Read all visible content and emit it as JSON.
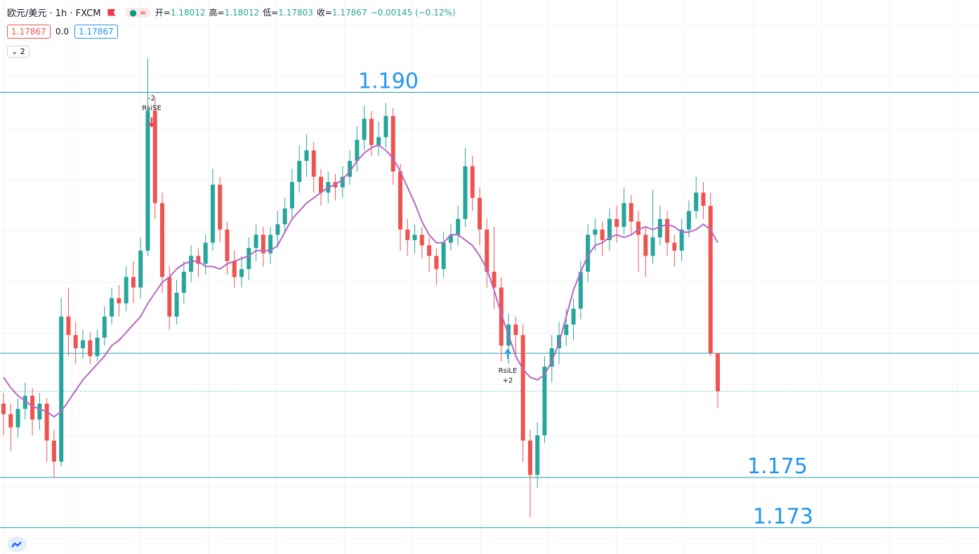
{
  "chart_data": {
    "type": "candlestick",
    "title": "欧元/美元 · 1h · FXCM",
    "indicator_icon": "≈",
    "legend": [
      {
        "label": "开=",
        "value": "1.18012"
      },
      {
        "label": "高=",
        "value": "1.18012"
      },
      {
        "label": "低=",
        "value": "1.17803"
      },
      {
        "label": "收=",
        "value": "1.17867"
      }
    ],
    "change": "−0.00145 (−0.12%)",
    "badges": [
      "1.17867",
      "0.0",
      "1.17867"
    ],
    "collapse_label": "2",
    "ylim": [
      1.1725,
      1.1935
    ],
    "up_color": "#26a69a",
    "down_color": "#ef5350",
    "ma_color": "#b865c6",
    "open": [
      1.1782,
      1.1778,
      1.1773,
      1.178,
      1.1785,
      1.1776,
      1.1782,
      1.1768,
      1.176,
      1.1815,
      1.1808,
      1.1803,
      1.1806,
      1.18,
      1.1807,
      1.1815,
      1.1822,
      1.182,
      1.183,
      1.1826,
      1.184,
      1.1893,
      1.1858,
      1.183,
      1.1815,
      1.1824,
      1.1832,
      1.1838,
      1.1835,
      1.1843,
      1.1865,
      1.1848,
      1.1836,
      1.183,
      1.1833,
      1.1841,
      1.1846,
      1.1839,
      1.1846,
      1.185,
      1.1856,
      1.1866,
      1.1874,
      1.1878,
      1.1868,
      1.1862,
      1.1866,
      1.1864,
      1.1868,
      1.1874,
      1.1882,
      1.189,
      1.188,
      1.1883,
      1.1891,
      1.187,
      1.1848,
      1.1844,
      1.1846,
      1.1842,
      1.1838,
      1.1833,
      1.1843,
      1.1846,
      1.1852,
      1.1872,
      1.186,
      1.1848,
      1.1832,
      1.1826,
      1.1804,
      1.1812,
      1.1808,
      1.1768,
      1.1755,
      1.177,
      1.1796,
      1.1803,
      1.1808,
      1.1812,
      1.1818,
      1.1832,
      1.1846,
      1.1848,
      1.1844,
      1.1852,
      1.1849,
      1.1858,
      1.1851,
      1.1846,
      1.1838,
      1.1845,
      1.1852,
      1.1843,
      1.184,
      1.1848,
      1.1855,
      1.1862,
      1.1857,
      1.18012
    ],
    "high": [
      1.1786,
      1.1782,
      1.1784,
      1.179,
      1.1788,
      1.1786,
      1.1784,
      1.1772,
      1.1822,
      1.1826,
      1.1813,
      1.181,
      1.1809,
      1.181,
      1.1819,
      1.1826,
      1.1827,
      1.1834,
      1.1836,
      1.1845,
      1.1913,
      1.1898,
      1.1862,
      1.1834,
      1.1829,
      1.1836,
      1.1842,
      1.1841,
      1.1846,
      1.1871,
      1.1868,
      1.1851,
      1.184,
      1.1838,
      1.1845,
      1.185,
      1.1849,
      1.1849,
      1.1855,
      1.186,
      1.1871,
      1.188,
      1.1884,
      1.1881,
      1.1871,
      1.187,
      1.1869,
      1.1872,
      1.1878,
      1.1887,
      1.1895,
      1.1893,
      1.1889,
      1.1896,
      1.1894,
      1.1873,
      1.1852,
      1.185,
      1.1849,
      1.1845,
      1.1841,
      1.1847,
      1.185,
      1.1857,
      1.1879,
      1.1876,
      1.1864,
      1.1852,
      1.1849,
      1.183,
      1.1816,
      1.1815,
      1.1812,
      1.1772,
      1.1775,
      1.18,
      1.1808,
      1.1813,
      1.1818,
      1.1822,
      1.1836,
      1.185,
      1.1852,
      1.1851,
      1.1856,
      1.1857,
      1.1864,
      1.1861,
      1.1855,
      1.1849,
      1.1863,
      1.1857,
      1.1855,
      1.1846,
      1.1852,
      1.1859,
      1.1868,
      1.1866,
      1.1862,
      1.18012
    ],
    "low": [
      1.177,
      1.1764,
      1.1769,
      1.1776,
      1.177,
      1.1772,
      1.176,
      1.1754,
      1.1758,
      1.18,
      1.1797,
      1.1799,
      1.1797,
      1.1798,
      1.1804,
      1.1812,
      1.1815,
      1.1817,
      1.182,
      1.1822,
      1.1838,
      1.1852,
      1.1824,
      1.181,
      1.1812,
      1.182,
      1.1828,
      1.183,
      1.1831,
      1.184,
      1.1843,
      1.1831,
      1.1826,
      1.1826,
      1.1829,
      1.1836,
      1.1834,
      1.1835,
      1.1841,
      1.1847,
      1.1852,
      1.1862,
      1.1868,
      1.1862,
      1.1857,
      1.1858,
      1.1859,
      1.186,
      1.1865,
      1.187,
      1.1878,
      1.1876,
      1.1876,
      1.1879,
      1.1865,
      1.184,
      1.1838,
      1.1839,
      1.1837,
      1.1832,
      1.1827,
      1.183,
      1.184,
      1.1842,
      1.1849,
      1.1855,
      1.1842,
      1.1826,
      1.1818,
      1.1798,
      1.1797,
      1.18,
      1.176,
      1.1739,
      1.175,
      1.1767,
      1.179,
      1.1797,
      1.1804,
      1.1806,
      1.1814,
      1.1828,
      1.184,
      1.1838,
      1.184,
      1.1843,
      1.1846,
      1.1846,
      1.1832,
      1.183,
      1.1835,
      1.1842,
      1.1838,
      1.1834,
      1.1836,
      1.1845,
      1.1852,
      1.1852,
      1.18,
      1.17803
    ],
    "close": [
      1.1778,
      1.1773,
      1.178,
      1.1785,
      1.1776,
      1.1782,
      1.1768,
      1.176,
      1.1815,
      1.1808,
      1.1803,
      1.1806,
      1.18,
      1.1807,
      1.1815,
      1.1822,
      1.182,
      1.183,
      1.1826,
      1.184,
      1.1893,
      1.1858,
      1.183,
      1.1815,
      1.1824,
      1.1832,
      1.1838,
      1.1835,
      1.1843,
      1.1865,
      1.1848,
      1.1836,
      1.183,
      1.1833,
      1.1841,
      1.1846,
      1.1839,
      1.1846,
      1.185,
      1.1856,
      1.1866,
      1.1874,
      1.1878,
      1.1868,
      1.1862,
      1.1866,
      1.1864,
      1.1868,
      1.1874,
      1.1882,
      1.189,
      1.188,
      1.1883,
      1.1891,
      1.187,
      1.1848,
      1.1844,
      1.1846,
      1.1842,
      1.1838,
      1.1833,
      1.1843,
      1.1846,
      1.1852,
      1.1872,
      1.186,
      1.1848,
      1.1832,
      1.1826,
      1.1804,
      1.1812,
      1.1808,
      1.1768,
      1.1755,
      1.177,
      1.1796,
      1.1803,
      1.1808,
      1.1812,
      1.1818,
      1.1832,
      1.1846,
      1.1848,
      1.1844,
      1.1852,
      1.1849,
      1.1858,
      1.1851,
      1.1846,
      1.1838,
      1.1845,
      1.1852,
      1.1843,
      1.184,
      1.1848,
      1.1855,
      1.1862,
      1.1857,
      1.18012,
      1.17867
    ],
    "ma": [
      1.1792,
      1.1788,
      1.1785,
      1.1783,
      1.1781,
      1.178,
      1.1779,
      1.1777,
      1.1779,
      1.1783,
      1.1787,
      1.1791,
      1.1794,
      1.1797,
      1.18,
      1.1804,
      1.1806,
      1.1809,
      1.1812,
      1.1815,
      1.182,
      1.1824,
      1.1828,
      1.183,
      1.1833,
      1.1835,
      1.1836,
      1.1836,
      1.1834,
      1.1834,
      1.1833,
      1.1835,
      1.1836,
      1.1837,
      1.1838,
      1.184,
      1.184,
      1.184,
      1.1842,
      1.1847,
      1.1852,
      1.1855,
      1.1858,
      1.186,
      1.1862,
      1.1864,
      1.1865,
      1.1867,
      1.187,
      1.1874,
      1.1877,
      1.1879,
      1.188,
      1.1878,
      1.1875,
      1.187,
      1.1864,
      1.1858,
      1.1851,
      1.1846,
      1.1843,
      1.1843,
      1.1846,
      1.1846,
      1.1844,
      1.1842,
      1.1838,
      1.1833,
      1.1825,
      1.1816,
      1.1808,
      1.18,
      1.1795,
      1.1792,
      1.1791,
      1.1793,
      1.1798,
      1.1805,
      1.1815,
      1.1825,
      1.1832,
      1.1838,
      1.1842,
      1.1843,
      1.1845,
      1.1846,
      1.1845,
      1.1846,
      1.1848,
      1.1849,
      1.1848,
      1.1849,
      1.185,
      1.1849,
      1.1847,
      1.1847,
      1.1848,
      1.185,
      1.1848,
      1.1843
    ],
    "horizontal_lines": [
      {
        "value": 1.19,
        "label": "1.190"
      },
      {
        "value": 1.1754,
        "label": "1.175"
      },
      {
        "value": 1.1735,
        "label": "1.173"
      },
      {
        "value": 1.18011
      }
    ],
    "signals": [
      {
        "text": [
          "-2",
          "RsiSE"
        ]
      },
      {
        "text": [
          "RsiLE",
          "+2"
        ]
      }
    ]
  }
}
